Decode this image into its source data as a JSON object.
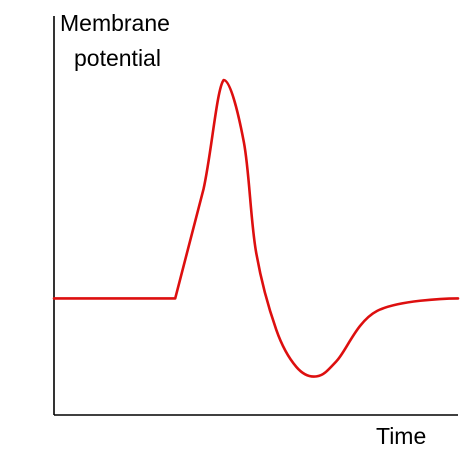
{
  "chart_data": {
    "type": "line",
    "title": "",
    "ylabel_lines": [
      "Membrane",
      "potential"
    ],
    "xlabel": "Time",
    "grid": false,
    "ticks": false,
    "series": [
      {
        "color": "#dd0f0f",
        "points": [
          [
            0.0,
            0.3
          ],
          [
            0.3,
            0.3
          ],
          [
            0.37,
            0.65
          ],
          [
            0.42,
            1.0
          ],
          [
            0.47,
            0.8
          ],
          [
            0.5,
            0.45
          ],
          [
            0.55,
            0.2
          ],
          [
            0.6,
            0.08
          ],
          [
            0.65,
            0.05
          ],
          [
            0.7,
            0.1
          ],
          [
            0.8,
            0.26
          ],
          [
            1.0,
            0.3
          ]
        ]
      }
    ]
  }
}
